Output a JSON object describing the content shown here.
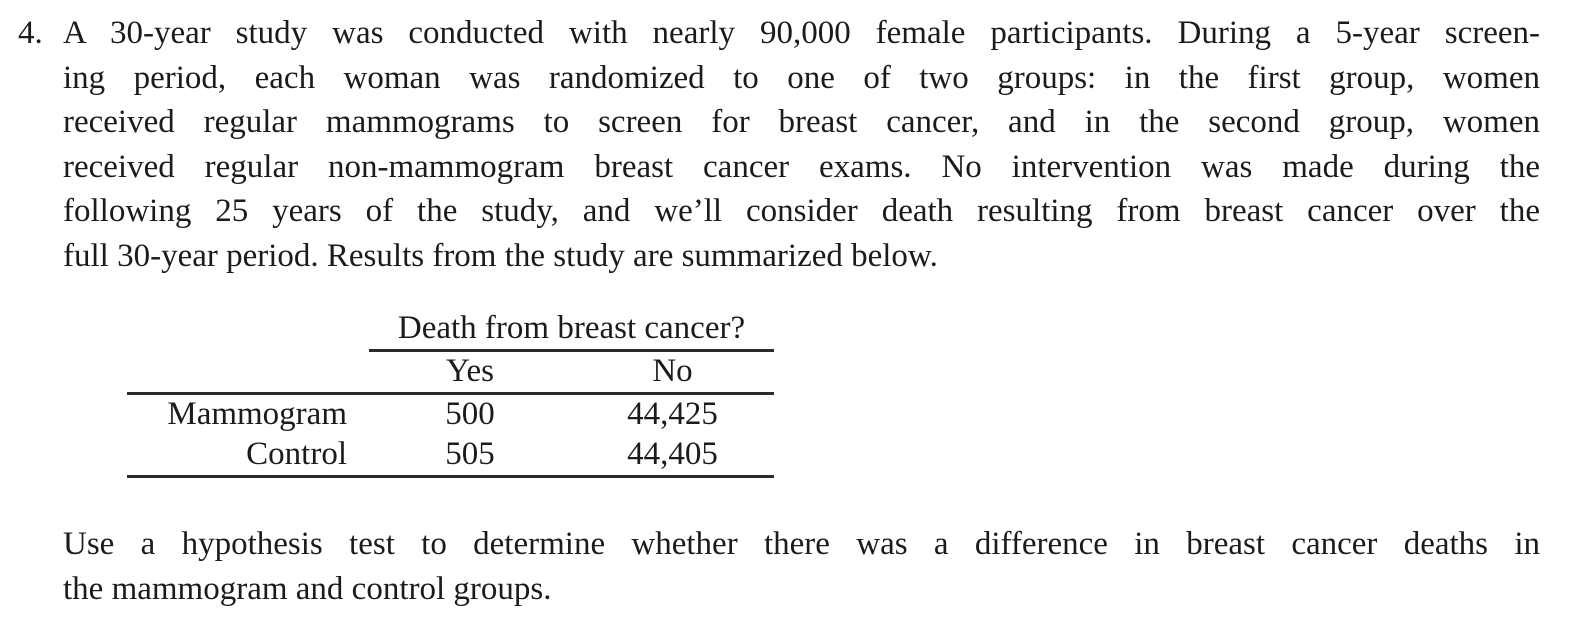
{
  "page": {
    "background": "#ffffff",
    "text_color": "#1b1b1b",
    "rule_color": "#2b2b2b"
  },
  "problem": {
    "number": "4.",
    "intro_lines": [
      "A 30-year study was conducted with nearly 90,000 female participants. During a 5-year screen-",
      "ing period, each woman was randomized to one of two groups: in the first group, women",
      "received regular mammograms to screen for breast cancer, and in the second group, women",
      "received regular non-mammogram breast cancer exams. No intervention was made during the",
      "following 25 years of the study, and we’ll consider death resulting from breast cancer over the",
      "full 30-year period. Results from the study are summarized below."
    ],
    "question_lines": [
      "Use a hypothesis test to determine whether there was a difference in breast cancer deaths in",
      "the mammogram and control groups."
    ]
  },
  "table": {
    "span_header": "Death from breast cancer?",
    "col_headers": [
      "Yes",
      "No"
    ],
    "rows": [
      {
        "label": "Mammogram",
        "yes": "500",
        "no": "44,425"
      },
      {
        "label": "Control",
        "yes": "505",
        "no": "44,405"
      }
    ]
  }
}
